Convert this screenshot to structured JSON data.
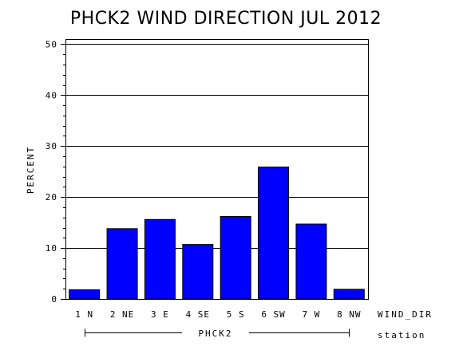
{
  "chart_data": {
    "type": "bar",
    "title": "PHCK2 WIND DIRECTION JUL 2012",
    "ylabel": "PERCENT",
    "xlabel": "WIND_DIR",
    "group_label": "PHCK2",
    "group_axis_label": "station",
    "categories": [
      "1 N",
      "2 NE",
      "3 E",
      "4 SE",
      "5 S",
      "6 SW",
      "7 W",
      "8 NW"
    ],
    "values": [
      1.8,
      13.8,
      15.6,
      10.7,
      16.2,
      25.9,
      14.7,
      1.9
    ],
    "ylim": [
      0,
      51
    ],
    "yticks": [
      0,
      10,
      20,
      30,
      40,
      50
    ],
    "grid": true,
    "bar_color": "#0000ff"
  }
}
